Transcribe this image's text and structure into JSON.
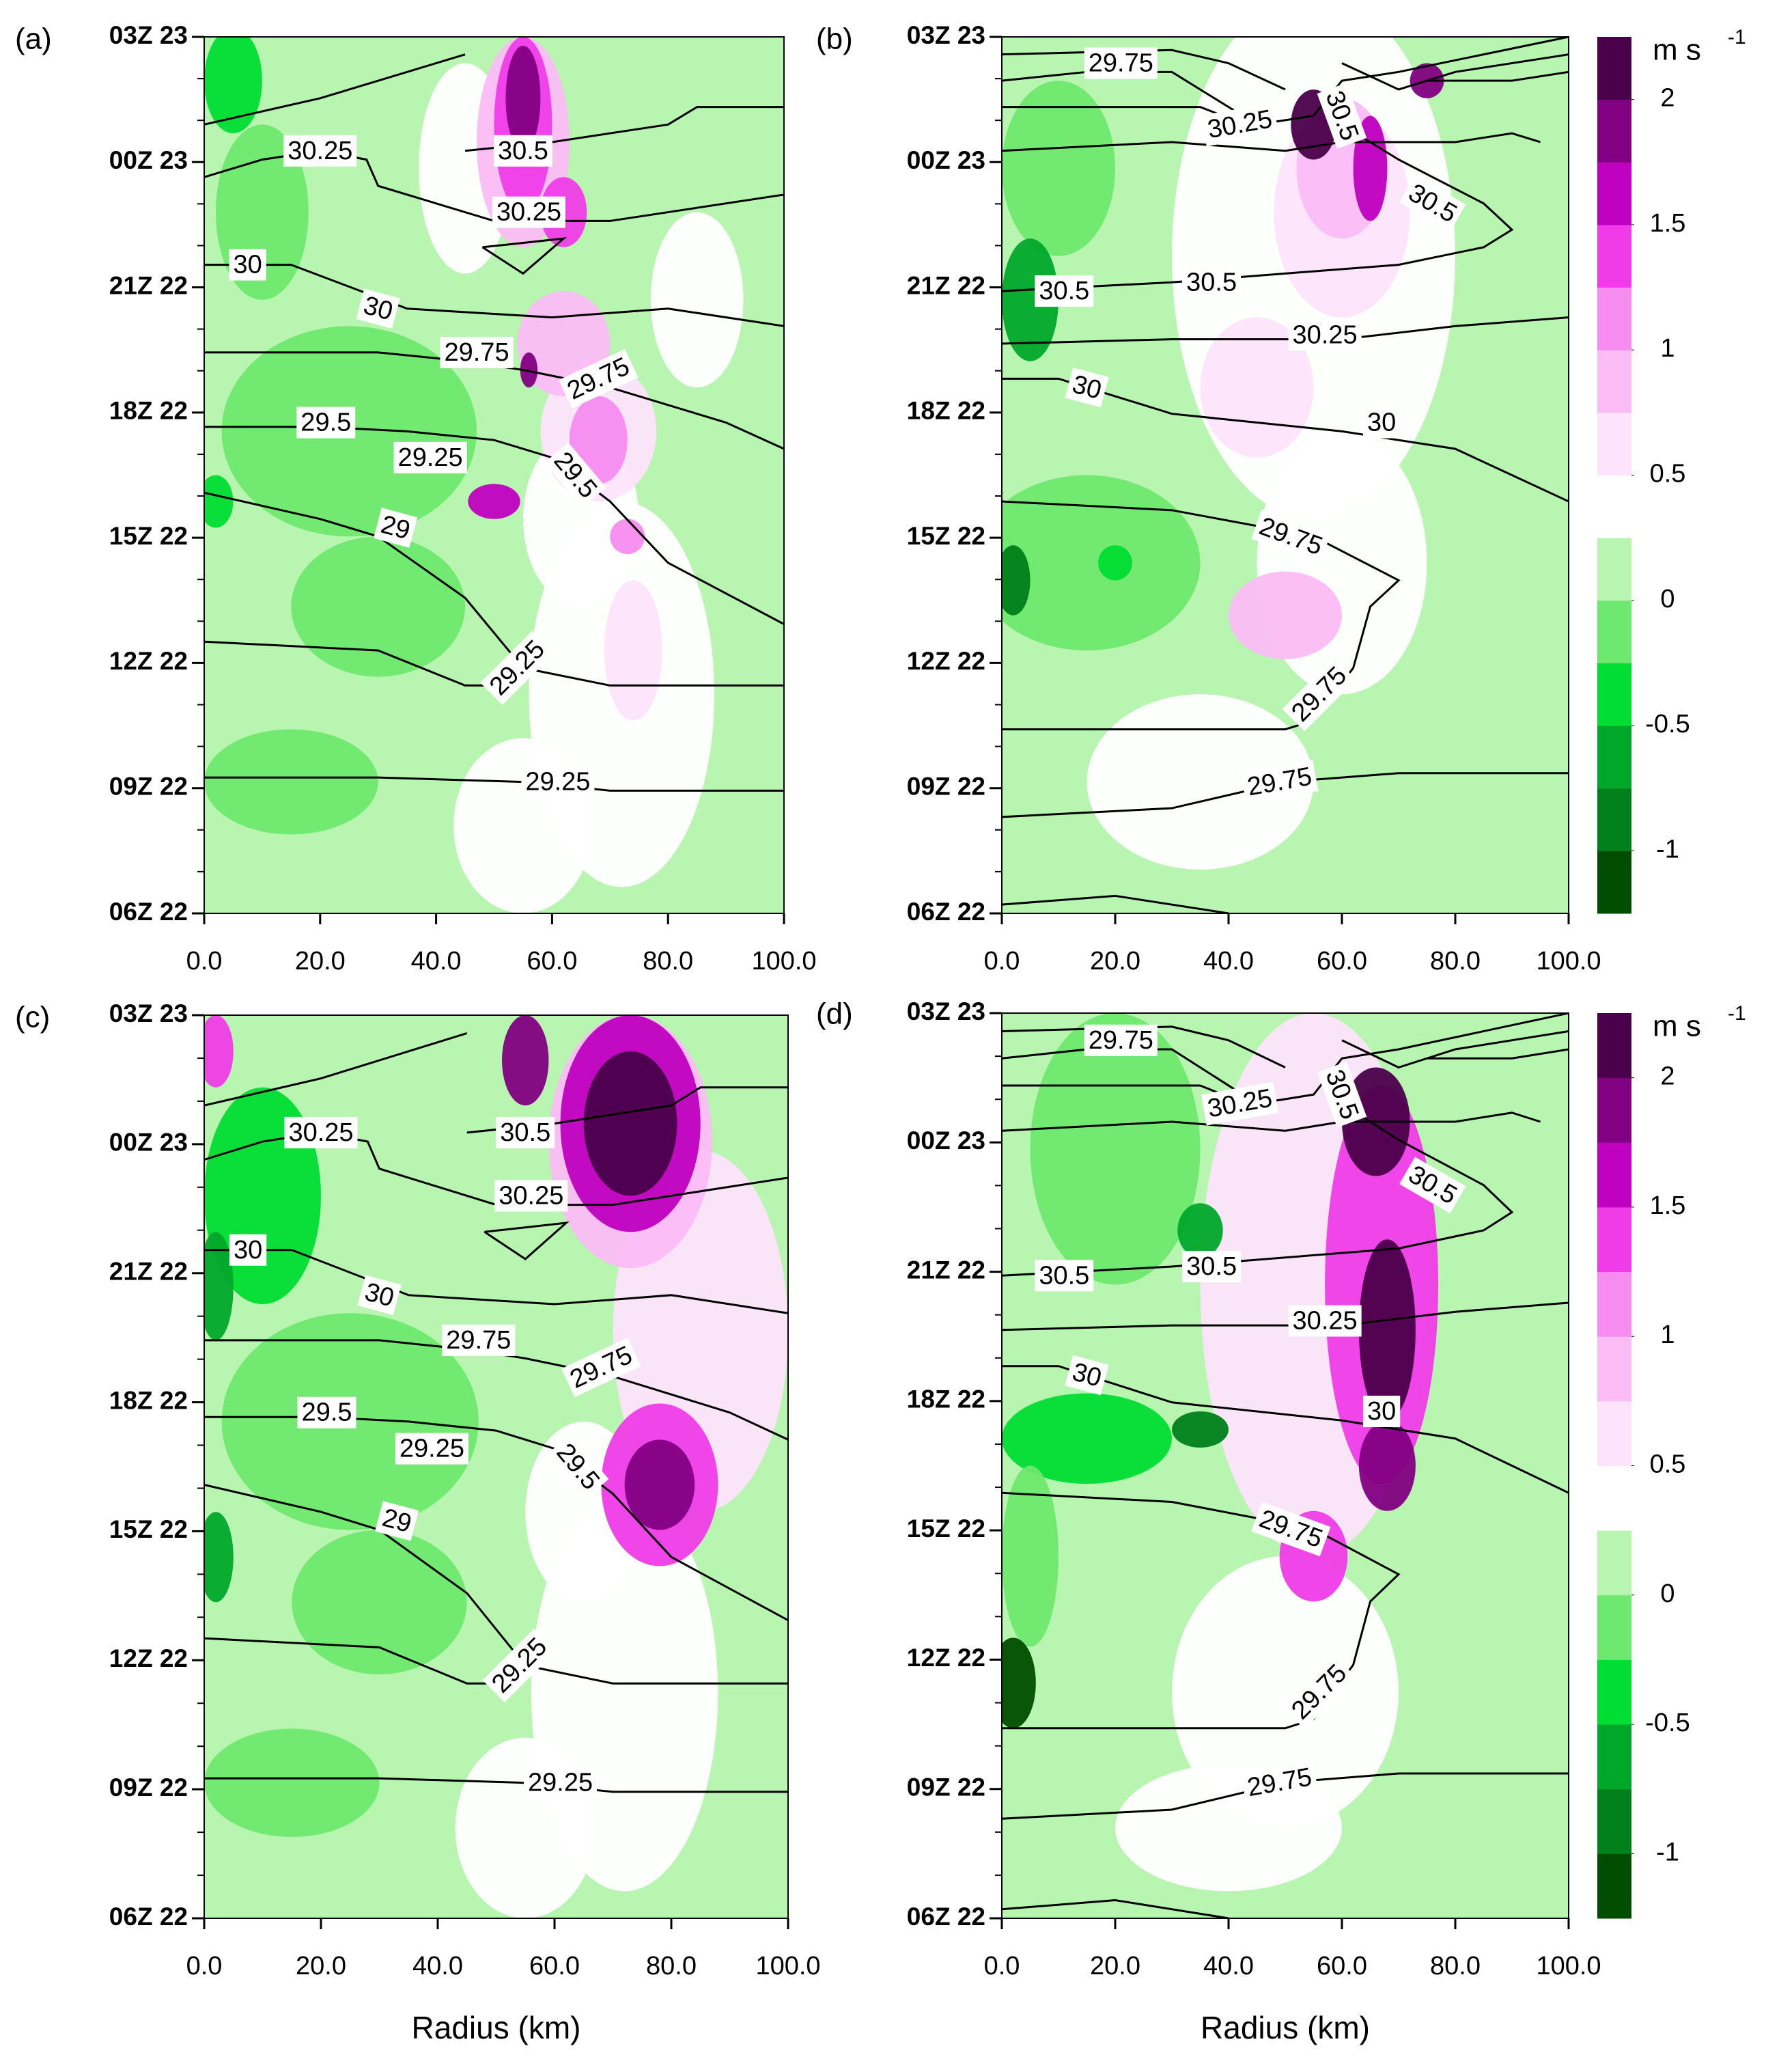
{
  "chart_data": [
    {
      "type": "contour",
      "panel_label": "(a)",
      "categories": [
        "06Z 22",
        "09Z 22",
        "12Z 22",
        "15Z 22",
        "18Z 22",
        "21Z 22",
        "00Z 23",
        "03Z 23"
      ],
      "xlim": [
        0,
        100
      ],
      "xticks": [
        {
          "value": 0,
          "label": "0.0"
        },
        {
          "value": 20,
          "label": "20.0"
        },
        {
          "value": 40,
          "label": "40.0"
        },
        {
          "value": 60,
          "label": "60.0"
        },
        {
          "value": 80,
          "label": "80.0"
        },
        {
          "value": 100,
          "label": "100.0"
        }
      ],
      "contour_labels": [
        30.25,
        30.5,
        30.25,
        30,
        30,
        29.75,
        29.75,
        29.5,
        29.25,
        29.5,
        29,
        29.25,
        29.25
      ]
    },
    {
      "type": "contour",
      "panel_label": "(b)",
      "categories": [
        "06Z 22",
        "09Z 22",
        "12Z 22",
        "15Z 22",
        "18Z 22",
        "21Z 22",
        "00Z 23",
        "03Z 23"
      ],
      "xlim": [
        0,
        100
      ],
      "xticks": [
        {
          "value": 0,
          "label": "0.0"
        },
        {
          "value": 20,
          "label": "20.0"
        },
        {
          "value": 40,
          "label": "40.0"
        },
        {
          "value": 60,
          "label": "60.0"
        },
        {
          "value": 80,
          "label": "80.0"
        },
        {
          "value": 100,
          "label": "100.0"
        }
      ],
      "contour_labels": [
        29.75,
        30.25,
        30.5,
        30.5,
        30.5,
        30.5,
        30.25,
        30,
        30,
        29.75,
        29.75,
        29.75
      ],
      "colorbar": {
        "unit": "m s",
        "unit_exponent": "-1",
        "lim": [
          -1.25,
          2.25
        ],
        "ticks": [
          -1,
          -0.5,
          0,
          0.5,
          1,
          1.5,
          2
        ],
        "colors": [
          "#004d00",
          "#00801a",
          "#00a82a",
          "#00dd33",
          "#6ee86e",
          "#b8f5b0",
          "#ffffff",
          "#fde4fc",
          "#fbbcf6",
          "#f78cf0",
          "#ef3ce8",
          "#c000c0",
          "#820082",
          "#4a004a"
        ]
      }
    },
    {
      "type": "contour",
      "panel_label": "(c)",
      "categories": [
        "06Z 22",
        "09Z 22",
        "12Z 22",
        "15Z 22",
        "18Z 22",
        "21Z 22",
        "00Z 23",
        "03Z 23"
      ],
      "xlim": [
        0,
        100
      ],
      "xticks": [
        {
          "value": 0,
          "label": "0.0"
        },
        {
          "value": 20,
          "label": "20.0"
        },
        {
          "value": 40,
          "label": "40.0"
        },
        {
          "value": 60,
          "label": "60.0"
        },
        {
          "value": 80,
          "label": "80.0"
        },
        {
          "value": 100,
          "label": "100.0"
        }
      ],
      "x_label": "Radius (km)",
      "contour_labels": [
        30.25,
        30.5,
        30.25,
        30,
        30,
        29.75,
        29.75,
        29.5,
        29.25,
        29.5,
        29,
        29.25,
        29.25
      ]
    },
    {
      "type": "contour",
      "panel_label": "(d)",
      "categories": [
        "06Z 22",
        "09Z 22",
        "12Z 22",
        "15Z 22",
        "18Z 22",
        "21Z 22",
        "00Z 23",
        "03Z 23"
      ],
      "xlim": [
        0,
        100
      ],
      "xticks": [
        {
          "value": 0,
          "label": "0.0"
        },
        {
          "value": 20,
          "label": "20.0"
        },
        {
          "value": 40,
          "label": "40.0"
        },
        {
          "value": 60,
          "label": "60.0"
        },
        {
          "value": 80,
          "label": "80.0"
        },
        {
          "value": 100,
          "label": "100.0"
        }
      ],
      "x_label": "Radius (km)",
      "contour_labels": [
        29.75,
        30.25,
        30.5,
        30.5,
        30.5,
        30.5,
        30.25,
        30,
        30,
        29.75,
        29.75,
        29.75
      ],
      "colorbar": {
        "unit": "m s",
        "unit_exponent": "-1",
        "lim": [
          -1.25,
          2.25
        ],
        "ticks": [
          -1,
          -0.5,
          0,
          0.5,
          1,
          1.5,
          2
        ],
        "colors": [
          "#004d00",
          "#00801a",
          "#00a82a",
          "#00dd33",
          "#6ee86e",
          "#b8f5b0",
          "#ffffff",
          "#fde4fc",
          "#fbbcf6",
          "#f78cf0",
          "#ef3ce8",
          "#c000c0",
          "#820082",
          "#4a004a"
        ]
      }
    }
  ]
}
